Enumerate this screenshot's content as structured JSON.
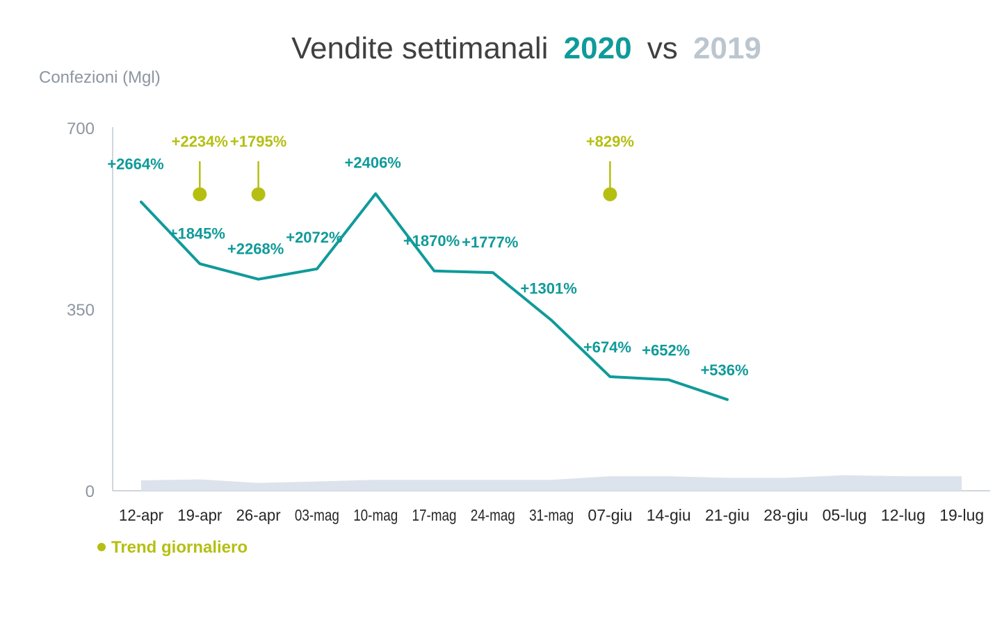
{
  "chart_data": {
    "type": "line",
    "title": {
      "main": "Vendite settimanali",
      "year_2020": "2020",
      "vs": "vs",
      "year_2019": "2019"
    },
    "ylabel": "Confezioni (Mgl)",
    "yticks": [
      "700",
      "350",
      "0"
    ],
    "ylim": [
      0,
      700
    ],
    "grid": false,
    "categories": [
      "12-apr",
      "19-apr",
      "26-apr",
      "03-mag",
      "10-mag",
      "17-mag",
      "24-mag",
      "31-mag",
      "07-giu",
      "14-giu",
      "21-giu",
      "28-giu",
      "05-lug",
      "12-lug",
      "19-lug"
    ],
    "series": [
      {
        "name": "2020",
        "type": "line",
        "color": "#109A9A",
        "values": [
          557,
          438,
          408,
          428,
          573,
          424,
          421,
          329,
          220,
          214,
          176,
          null,
          null,
          null,
          null
        ],
        "data_labels": [
          "+2664%",
          "+1845%",
          "+2268%",
          "+2072%",
          "+2406%",
          "+1870%",
          "+1777%",
          "+1301%",
          "+674%",
          "+652%",
          "+536%",
          null,
          null,
          null,
          null
        ]
      },
      {
        "name": "2019",
        "type": "area",
        "color": "#DDE3EC",
        "values": [
          20,
          22,
          15,
          18,
          21,
          21,
          21,
          21,
          28,
          28,
          25,
          25,
          30,
          28,
          28
        ]
      }
    ],
    "annotations": {
      "series_name": "Trend giornaliero",
      "color": "#B5BF12",
      "points": [
        {
          "category": "19-apr",
          "label": "+2234%",
          "value": 572
        },
        {
          "category": "26-apr",
          "label": "+1795%",
          "value": 572
        },
        {
          "category": "07-giu",
          "label": "+829%",
          "value": 572
        }
      ]
    },
    "legend": {
      "position": "bottom-left",
      "entries": [
        "Trend giornaliero"
      ]
    }
  }
}
